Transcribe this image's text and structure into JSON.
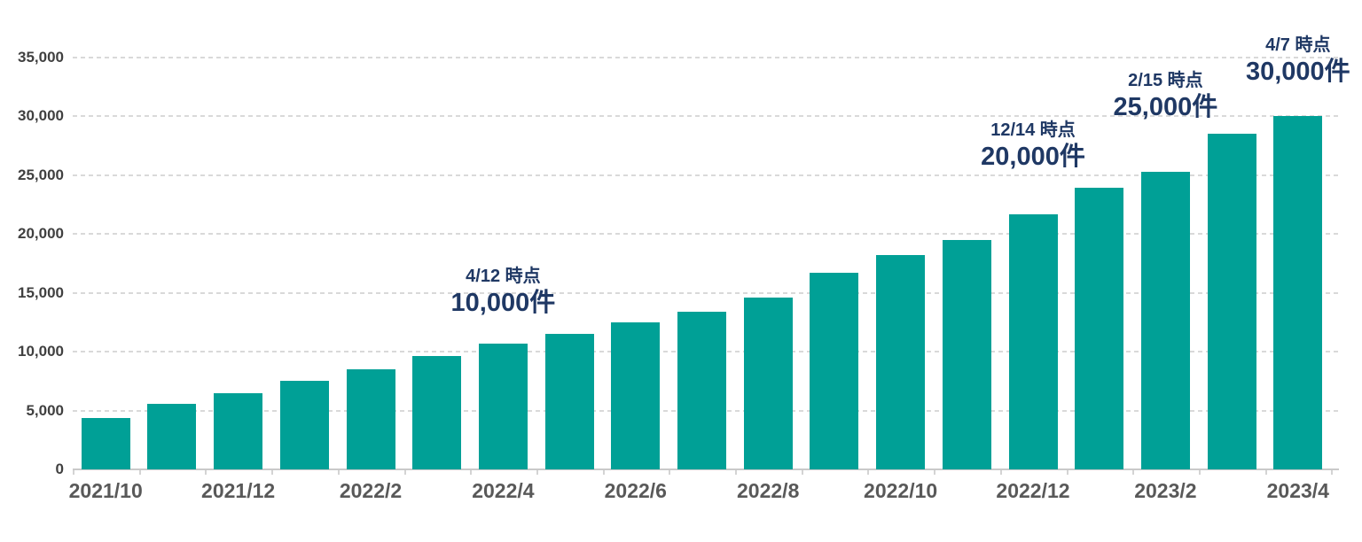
{
  "chart_data": {
    "type": "bar",
    "title": "",
    "xlabel": "",
    "ylabel": "",
    "unit_suffix": "件",
    "bar_color": "#00a096",
    "grid": "horizontal-dashed",
    "legend": "none",
    "ylim": [
      0,
      35000
    ],
    "ytick_interval": 5000,
    "yticks": [
      {
        "value": 0,
        "label": "0"
      },
      {
        "value": 5000,
        "label": "5,000"
      },
      {
        "value": 10000,
        "label": "10,000"
      },
      {
        "value": 15000,
        "label": "15,000"
      },
      {
        "value": 20000,
        "label": "20,000"
      },
      {
        "value": 25000,
        "label": "25,000"
      },
      {
        "value": 30000,
        "label": "30,000"
      },
      {
        "value": 35000,
        "label": "35,000"
      }
    ],
    "categories": [
      "2021/10",
      "2021/11",
      "2021/12",
      "2022/1",
      "2022/2",
      "2022/3",
      "2022/4",
      "2022/5",
      "2022/6",
      "2022/7",
      "2022/8",
      "2022/9",
      "2022/10",
      "2022/11",
      "2022/12",
      "2023/1",
      "2023/2",
      "2023/3",
      "2023/4"
    ],
    "values": [
      4400,
      5600,
      6500,
      7500,
      8500,
      9600,
      10700,
      11500,
      12500,
      13400,
      14600,
      16700,
      18200,
      19500,
      21700,
      23900,
      25300,
      28500,
      30000
    ],
    "x_ticks_shown": [
      {
        "label": "2021/10",
        "bar_index": 0
      },
      {
        "label": "2021/12",
        "bar_index": 2
      },
      {
        "label": "2022/2",
        "bar_index": 4
      },
      {
        "label": "2022/4",
        "bar_index": 6
      },
      {
        "label": "2022/6",
        "bar_index": 8
      },
      {
        "label": "2022/8",
        "bar_index": 10
      },
      {
        "label": "2022/10",
        "bar_index": 12
      },
      {
        "label": "2022/12",
        "bar_index": 14
      },
      {
        "label": "2023/2",
        "bar_index": 16
      },
      {
        "label": "2023/4",
        "bar_index": 18
      }
    ],
    "annotations": [
      {
        "date": "4/12 時点",
        "value": "10,000件",
        "bar_index": 6
      },
      {
        "date": "12/14 時点",
        "value": "20,000件",
        "bar_index": 14
      },
      {
        "date": "2/15 時点",
        "value": "25,000件",
        "bar_index": 16
      },
      {
        "date": "4/7 時点",
        "value": "30,000件",
        "bar_index": 18
      }
    ]
  }
}
